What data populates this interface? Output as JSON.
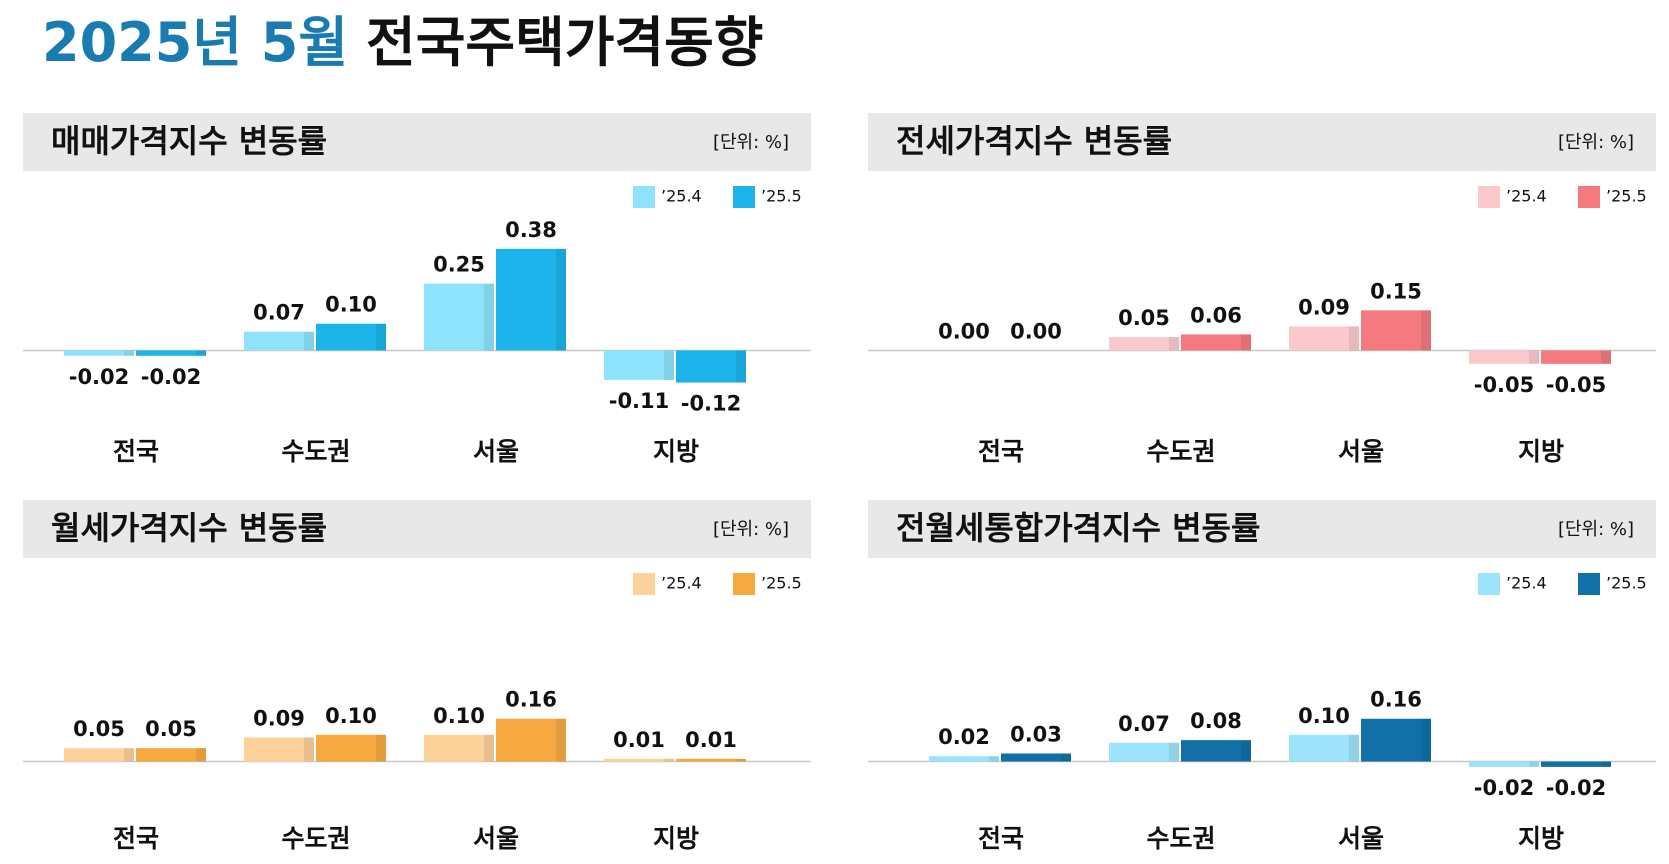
{
  "title": {
    "date": "2025년 5월",
    "text": "전국주택가격동향"
  },
  "chart_data": [
    {
      "type": "bar",
      "title": "매매가격지수 변동률",
      "unit": "[단위: %]",
      "categories": [
        "전국",
        "수도권",
        "서울",
        "지방"
      ],
      "series": [
        {
          "name": "’25.4",
          "color": "#8de3fb",
          "values": [
            -0.02,
            0.07,
            0.25,
            -0.11
          ],
          "value_labels": [
            "-0.02",
            "0.07",
            "0.25",
            "-0.11"
          ]
        },
        {
          "name": "’25.5",
          "color": "#1cb4ea",
          "values": [
            -0.02,
            0.1,
            0.38,
            -0.12
          ],
          "value_labels": [
            "-0.02",
            "0.10",
            "0.38",
            "-0.12"
          ]
        }
      ],
      "ylim": [
        -0.26,
        0.6
      ]
    },
    {
      "type": "bar",
      "title": "전세가격지수 변동률",
      "unit": "[단위: %]",
      "categories": [
        "전국",
        "수도권",
        "서울",
        "지방"
      ],
      "series": [
        {
          "name": "’25.4",
          "color": "#fbc8cc",
          "values": [
            0,
            0.05,
            0.09,
            -0.05
          ],
          "value_labels": [
            "0.00",
            "0.05",
            "0.09",
            "-0.05"
          ]
        },
        {
          "name": "’25.5",
          "color": "#f47a80",
          "values": [
            0,
            0.06,
            0.15,
            -0.05
          ],
          "value_labels": [
            "0.00",
            "0.06",
            "0.15",
            "-0.05"
          ]
        }
      ],
      "ylim": [
        -0.26,
        0.6
      ]
    },
    {
      "type": "bar",
      "title": "월세가격지수 변동률",
      "unit": "[단위: %]",
      "categories": [
        "전국",
        "수도권",
        "서울",
        "지방"
      ],
      "series": [
        {
          "name": "’25.4",
          "color": "#fdd19a",
          "values": [
            0.05,
            0.09,
            0.1,
            0.01
          ],
          "value_labels": [
            "0.05",
            "0.09",
            "0.10",
            "0.01"
          ]
        },
        {
          "name": "’25.5",
          "color": "#f5a93e",
          "values": [
            0.05,
            0.1,
            0.16,
            0.01
          ],
          "value_labels": [
            "0.05",
            "0.10",
            "0.16",
            "0.01"
          ]
        }
      ],
      "ylim": [
        -0.17,
        0.69
      ]
    },
    {
      "type": "bar",
      "title": "전월세통합가격지수 변동률",
      "unit": "[단위: %]",
      "categories": [
        "전국",
        "수도권",
        "서울",
        "지방"
      ],
      "series": [
        {
          "name": "’25.4",
          "color": "#9de3fb",
          "values": [
            0.02,
            0.07,
            0.1,
            -0.02
          ],
          "value_labels": [
            "0.02",
            "0.07",
            "0.10",
            "-0.02"
          ]
        },
        {
          "name": "’25.5",
          "color": "#1170a8",
          "values": [
            0.03,
            0.08,
            0.16,
            -0.02
          ],
          "value_labels": [
            "0.03",
            "0.08",
            "0.16",
            "-0.02"
          ]
        }
      ],
      "ylim": [
        -0.17,
        0.69
      ]
    }
  ]
}
